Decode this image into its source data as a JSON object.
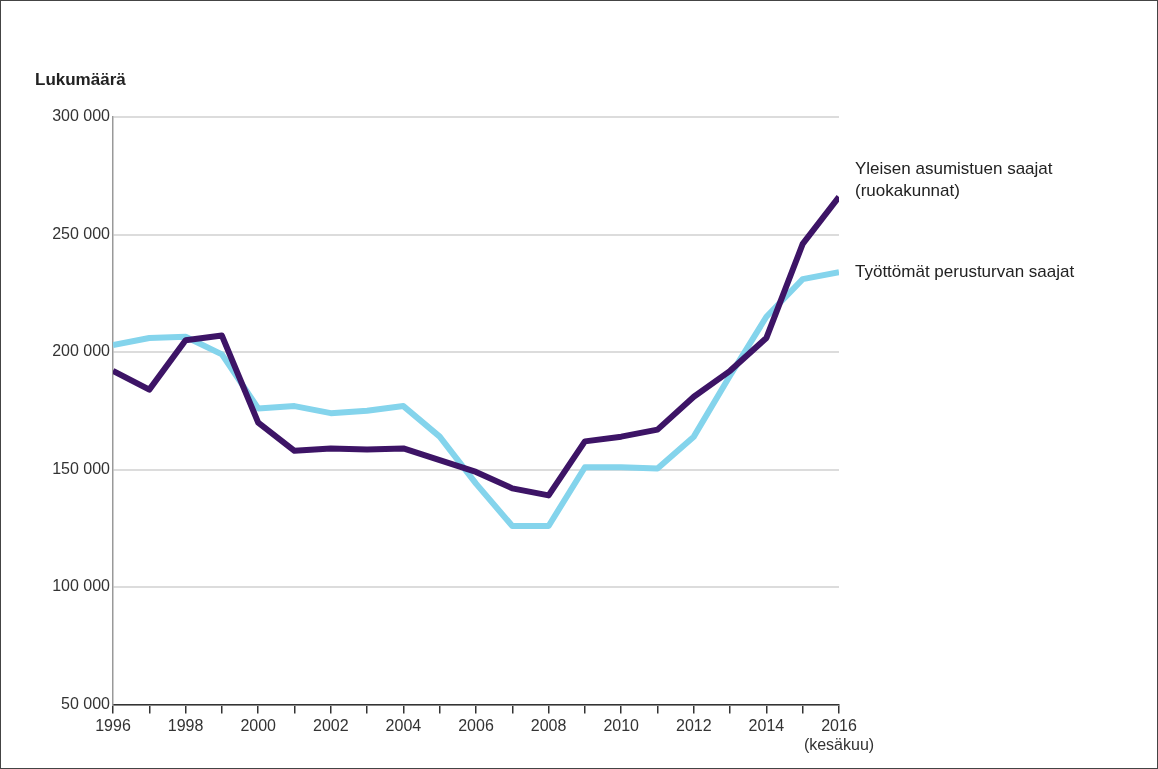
{
  "chart_data": {
    "type": "line",
    "ylabel": "Lukumäärä",
    "x": [
      1996,
      1997,
      1998,
      1999,
      2000,
      2001,
      2002,
      2003,
      2004,
      2005,
      2006,
      2007,
      2008,
      2009,
      2010,
      2011,
      2012,
      2013,
      2014,
      2015,
      2016
    ],
    "series": [
      {
        "name": "Yleisen asumistuen saajat (ruokakunnat)",
        "color": "#3d1466",
        "values": [
          192000,
          184000,
          205000,
          207000,
          170000,
          158000,
          159000,
          158500,
          159000,
          154000,
          149000,
          142000,
          139000,
          162000,
          164000,
          167000,
          181000,
          192000,
          206000,
          246000,
          266000
        ]
      },
      {
        "name": "Työttömät perusturvan saajat",
        "color": "#84d4ec",
        "values": [
          203000,
          206000,
          206500,
          199000,
          176000,
          177000,
          174000,
          175000,
          177000,
          164000,
          144000,
          126000,
          126000,
          151000,
          151000,
          150500,
          164000,
          190000,
          215000,
          231000,
          234000
        ]
      }
    ],
    "xlim": [
      1996,
      2016
    ],
    "xticks": [
      1996,
      {
        "value": 1997,
        "label": null
      },
      1998,
      {
        "value": 1999,
        "label": null
      },
      2000,
      {
        "value": 2001,
        "label": null
      },
      2002,
      {
        "value": 2003,
        "label": null
      },
      2004,
      {
        "value": 2005,
        "label": null
      },
      2006,
      {
        "value": 2007,
        "label": null
      },
      2008,
      {
        "value": 2009,
        "label": null
      },
      2010,
      {
        "value": 2011,
        "label": null
      },
      2012,
      {
        "value": 2013,
        "label": null
      },
      2014,
      {
        "value": 2015,
        "label": null
      },
      {
        "value": 2016,
        "label": "2016\n(kesäkuu)"
      }
    ],
    "ylim": [
      50000,
      300000
    ],
    "yticks": [
      {
        "value": 50000,
        "label": "50 000"
      },
      {
        "value": 100000,
        "label": "100 000"
      },
      {
        "value": 150000,
        "label": "150 000"
      },
      {
        "value": 200000,
        "label": "200 000"
      },
      {
        "value": 250000,
        "label": "250 000"
      },
      {
        "value": 300000,
        "label": "300 000"
      }
    ],
    "grid": "y",
    "legend": false,
    "marker": "none",
    "line_style": "solid"
  }
}
